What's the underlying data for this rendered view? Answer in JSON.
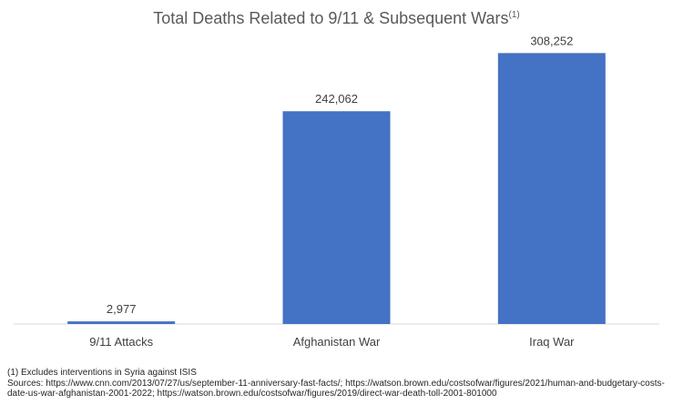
{
  "chart_data": {
    "type": "bar",
    "title": "Total Deaths Related to 9/11 & Subsequent Wars",
    "title_superscript": "(1)",
    "categories": [
      "9/11 Attacks",
      "Afghanistan War",
      "Iraq War"
    ],
    "values": [
      2977,
      242062,
      308252
    ],
    "data_labels": [
      "2,977",
      "242,062",
      "308,252"
    ],
    "xlabel": "",
    "ylabel": "",
    "ylim": [
      0,
      350000
    ],
    "grid": false,
    "legend": "none",
    "bar_color": "#4472C4"
  },
  "footnotes": {
    "note1": "(1) Excludes interventions in Syria against ISIS",
    "sources": "Sources: https://www.cnn.com/2013/07/27/us/september-11-anniversary-fast-facts/; https://watson.brown.edu/costsofwar/figures/2021/human-and-budgetary-costs-date-us-war-afghanistan-2001-2022; https://watson.brown.edu/costsofwar/figures/2019/direct-war-death-toll-2001-801000"
  }
}
